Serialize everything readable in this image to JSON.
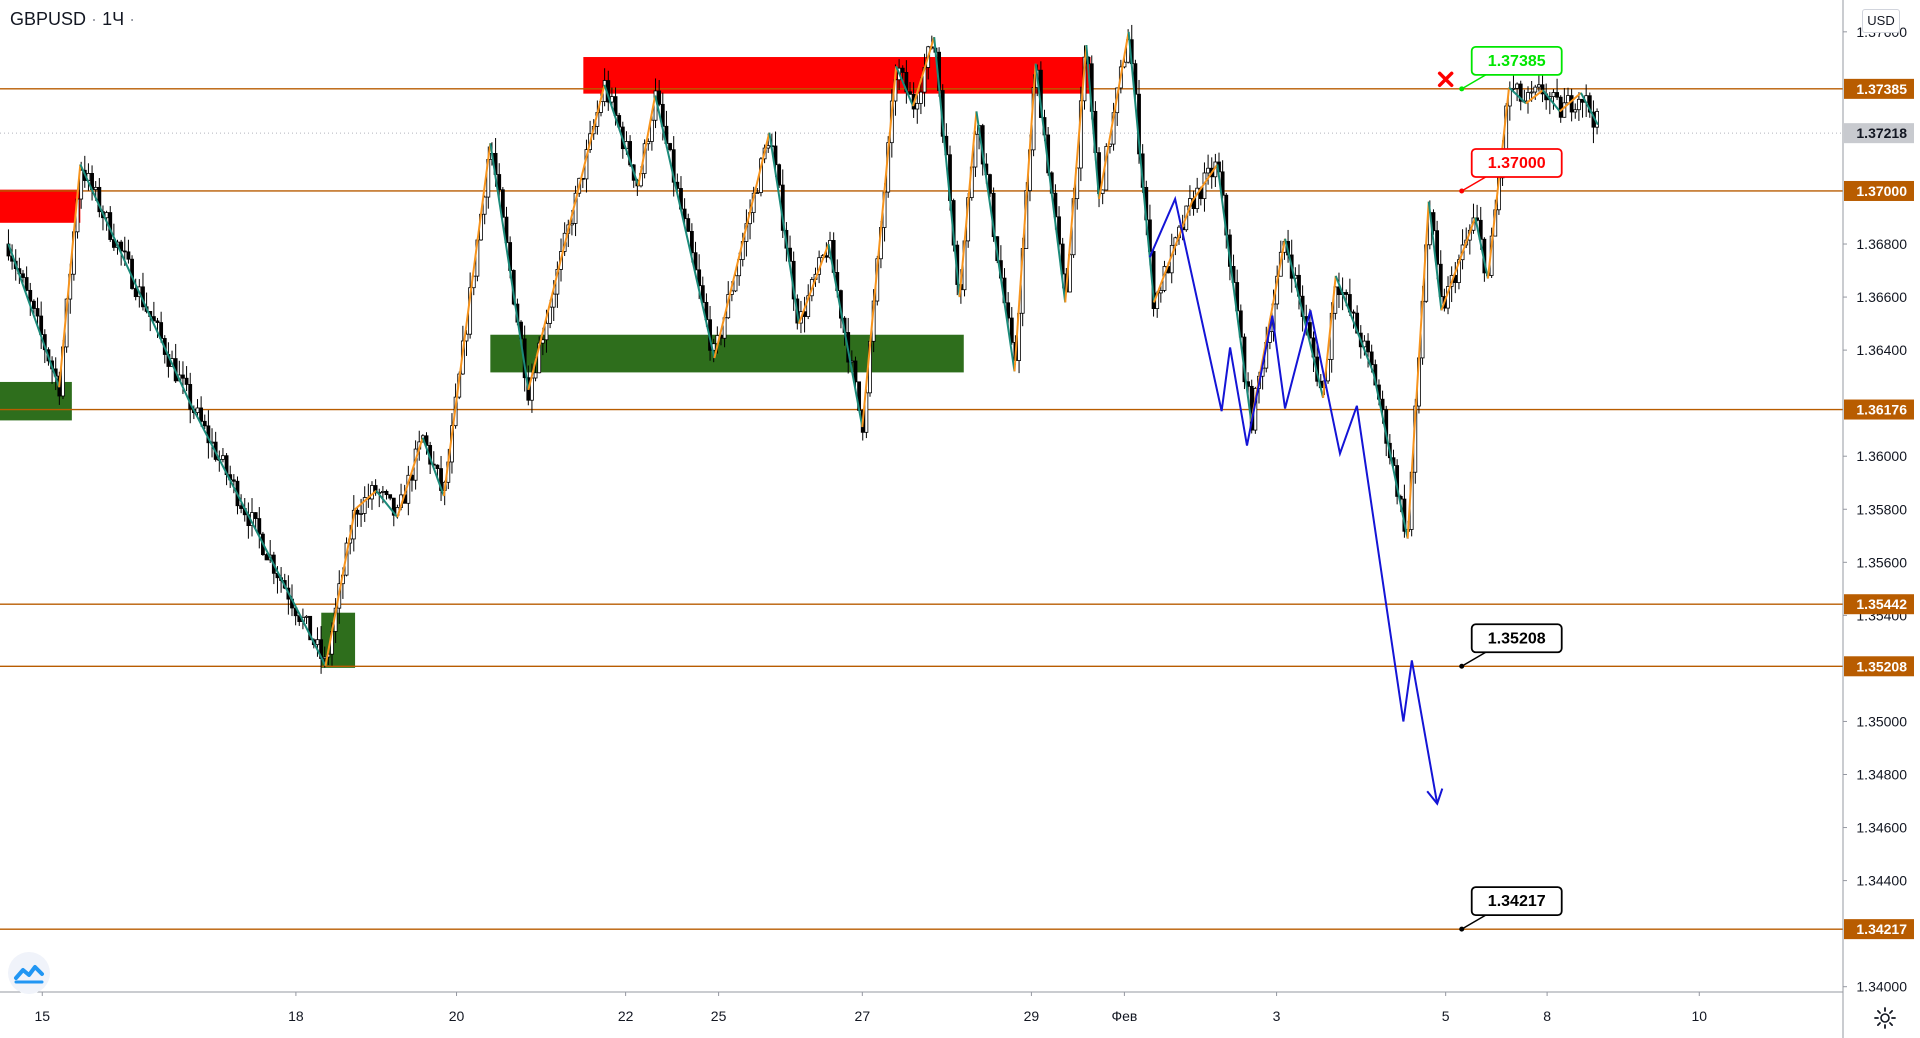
{
  "header": {
    "symbol": "GBPUSD",
    "separator": "·",
    "interval": "1Ч",
    "dot": "·"
  },
  "currency_button": "USD",
  "colors": {
    "level_line": "#b85c00",
    "level_tag": "#b85c00",
    "supply_zone": "#ff0000",
    "demand_zone": "#2e6e1c",
    "zigzag_up": "#f7941d",
    "zigzag_down": "#1b8a7a",
    "projection": "#1414d6",
    "candle": "#000000",
    "current_price_tag": "#c8cacf",
    "callout_green": "#00e600",
    "callout_red": "#ff0000",
    "callout_black": "#000000",
    "cross_mark": "#ff0000"
  },
  "chart_data": {
    "type": "line",
    "title": "",
    "symbol": "GBPUSD",
    "timeframe": "1Ч",
    "y_axis": {
      "ticks": [
        "1.37600",
        "1.36800",
        "1.36600",
        "1.36400",
        "1.36000",
        "1.35800",
        "1.35600",
        "1.35400",
        "1.35000",
        "1.34800",
        "1.34600",
        "1.34400",
        "1.34000"
      ],
      "ylim": [
        1.3398,
        1.3772
      ]
    },
    "x_axis": {
      "ticks": [
        {
          "label": "15",
          "x": 0.0
        },
        {
          "label": "18",
          "x": 3.0
        },
        {
          "label": "20",
          "x": 4.9
        },
        {
          "label": "22",
          "x": 6.9
        },
        {
          "label": "25",
          "x": 8.0
        },
        {
          "label": "27",
          "x": 9.7
        },
        {
          "label": "29",
          "x": 11.7
        },
        {
          "label": "Фев",
          "x": 12.8
        },
        {
          "label": "3",
          "x": 14.6
        },
        {
          "label": "5",
          "x": 16.6
        },
        {
          "label": "8",
          "x": 17.8
        },
        {
          "label": "10",
          "x": 19.6
        }
      ],
      "xlim": [
        -0.5,
        21.3
      ]
    },
    "levels": [
      {
        "label": "1.37385",
        "value": 1.37385
      },
      {
        "label": "1.37000",
        "value": 1.37
      },
      {
        "label": "1.36176",
        "value": 1.36176
      },
      {
        "label": "1.35442",
        "value": 1.35442
      },
      {
        "label": "1.35208",
        "value": 1.35208
      },
      {
        "label": "1.34217",
        "value": 1.34217
      }
    ],
    "current_price": {
      "label": "1.37218",
      "value": 1.37218
    },
    "zones": [
      {
        "kind": "supply",
        "x": [
          6.4,
          12.4
        ],
        "y": [
          1.37367,
          1.37505
        ]
      },
      {
        "kind": "supply",
        "x": [
          -0.5,
          0.45
        ],
        "y": [
          1.3688,
          1.37005
        ]
      },
      {
        "kind": "demand",
        "x": [
          3.3,
          3.7
        ],
        "y": [
          1.35202,
          1.3541
        ]
      },
      {
        "kind": "demand",
        "x": [
          -0.5,
          0.35
        ],
        "y": [
          1.36135,
          1.3628
        ]
      },
      {
        "kind": "demand",
        "x": [
          5.3,
          10.9
        ],
        "y": [
          1.36316,
          1.36458
        ]
      }
    ],
    "callouts": [
      {
        "label": "1.37385",
        "value": 1.37385,
        "x": 16.79,
        "style": "green"
      },
      {
        "label": "1.37000",
        "value": 1.37,
        "x": 16.79,
        "style": "red"
      },
      {
        "label": "1.35208",
        "value": 1.35208,
        "x": 16.79,
        "style": "black"
      },
      {
        "label": "1.34217",
        "value": 1.34217,
        "x": 16.79,
        "style": "black"
      }
    ],
    "cross_mark": {
      "x": 16.6,
      "value": 1.37421
    },
    "zigzag": [
      {
        "x": -0.4,
        "y": 1.368
      },
      {
        "x": 0.2,
        "y": 1.3626
      },
      {
        "x": 0.45,
        "y": 1.371
      },
      {
        "x": 1.75,
        "y": 1.362
      },
      {
        "x": 3.05,
        "y": 1.354
      },
      {
        "x": 3.35,
        "y": 1.3521
      },
      {
        "x": 3.7,
        "y": 1.358
      },
      {
        "x": 3.95,
        "y": 1.3587
      },
      {
        "x": 4.2,
        "y": 1.3577
      },
      {
        "x": 4.5,
        "y": 1.3607
      },
      {
        "x": 4.75,
        "y": 1.3585
      },
      {
        "x": 5.3,
        "y": 1.3718
      },
      {
        "x": 5.75,
        "y": 1.3625
      },
      {
        "x": 6.65,
        "y": 1.374
      },
      {
        "x": 7.05,
        "y": 1.3702
      },
      {
        "x": 7.25,
        "y": 1.3736
      },
      {
        "x": 7.95,
        "y": 1.3637
      },
      {
        "x": 8.6,
        "y": 1.3722
      },
      {
        "x": 8.95,
        "y": 1.365
      },
      {
        "x": 9.3,
        "y": 1.368
      },
      {
        "x": 9.7,
        "y": 1.3611
      },
      {
        "x": 10.1,
        "y": 1.3747
      },
      {
        "x": 10.3,
        "y": 1.3732
      },
      {
        "x": 10.55,
        "y": 1.3758
      },
      {
        "x": 10.85,
        "y": 1.366
      },
      {
        "x": 11.05,
        "y": 1.373
      },
      {
        "x": 11.5,
        "y": 1.3632
      },
      {
        "x": 11.75,
        "y": 1.3748
      },
      {
        "x": 12.1,
        "y": 1.3658
      },
      {
        "x": 12.35,
        "y": 1.3755
      },
      {
        "x": 12.5,
        "y": 1.3697
      },
      {
        "x": 12.85,
        "y": 1.376
      },
      {
        "x": 13.15,
        "y": 1.3658
      },
      {
        "x": 13.6,
        "y": 1.3696
      },
      {
        "x": 13.9,
        "y": 1.371
      },
      {
        "x": 14.3,
        "y": 1.3613
      },
      {
        "x": 14.7,
        "y": 1.3682
      },
      {
        "x": 15.15,
        "y": 1.3622
      },
      {
        "x": 15.3,
        "y": 1.3668
      },
      {
        "x": 15.75,
        "y": 1.3631
      },
      {
        "x": 16.15,
        "y": 1.3569
      },
      {
        "x": 16.4,
        "y": 1.3696
      },
      {
        "x": 16.55,
        "y": 1.3655
      },
      {
        "x": 16.95,
        "y": 1.369
      },
      {
        "x": 17.1,
        "y": 1.3667
      },
      {
        "x": 17.35,
        "y": 1.3739
      },
      {
        "x": 17.55,
        "y": 1.3733
      },
      {
        "x": 17.75,
        "y": 1.3738
      },
      {
        "x": 17.95,
        "y": 1.373
      },
      {
        "x": 18.2,
        "y": 1.3737
      },
      {
        "x": 18.4,
        "y": 1.3725
      }
    ],
    "projection": [
      {
        "x": 13.1,
        "y": 1.3675
      },
      {
        "x": 13.4,
        "y": 1.3697
      },
      {
        "x": 13.95,
        "y": 1.3617
      },
      {
        "x": 14.05,
        "y": 1.3641
      },
      {
        "x": 14.25,
        "y": 1.3604
      },
      {
        "x": 14.55,
        "y": 1.3653
      },
      {
        "x": 14.7,
        "y": 1.3618
      },
      {
        "x": 15.0,
        "y": 1.3655
      },
      {
        "x": 15.35,
        "y": 1.3601
      },
      {
        "x": 15.55,
        "y": 1.3619
      },
      {
        "x": 16.1,
        "y": 1.35
      },
      {
        "x": 16.2,
        "y": 1.3523
      },
      {
        "x": 16.5,
        "y": 1.3469
      }
    ]
  }
}
